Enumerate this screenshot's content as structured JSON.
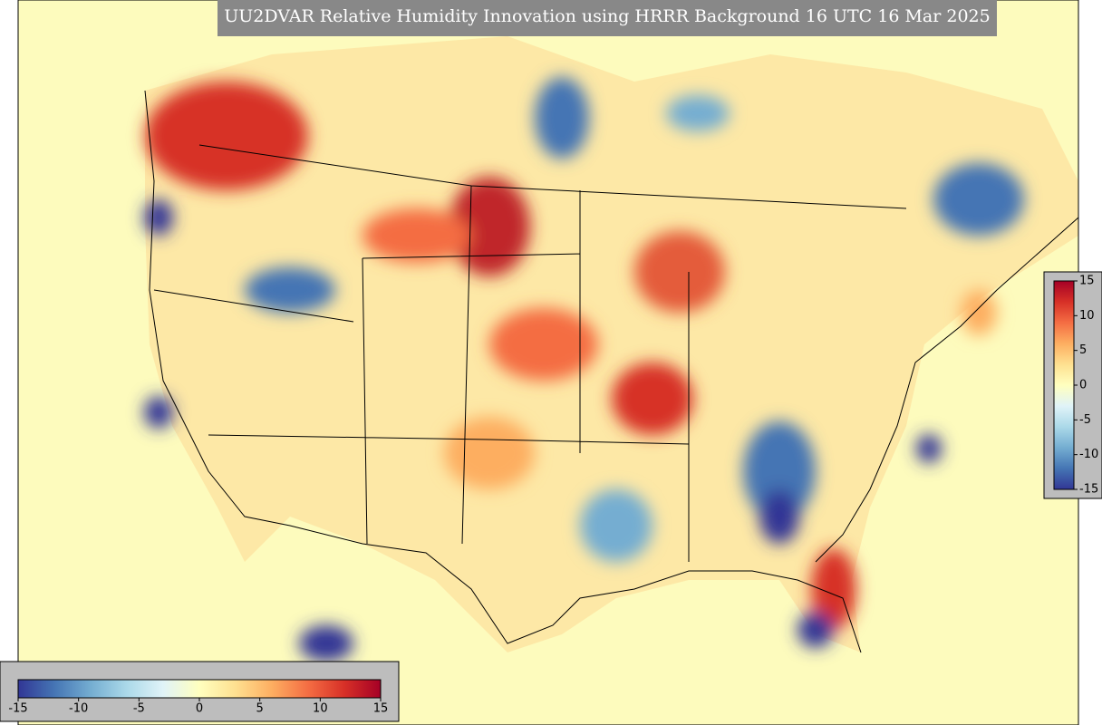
{
  "title": "UU2DVAR Relative Humidity Innovation using HRRR Background 16 UTC 16 Mar 2025",
  "colorbar": {
    "range": [
      -15,
      15
    ],
    "ticks": [
      -15,
      -10,
      -5,
      0,
      5,
      10,
      15
    ],
    "colormap": [
      "#313695",
      "#4575b4",
      "#74add1",
      "#abd9e9",
      "#e0f3f8",
      "#ffffbf",
      "#fee090",
      "#fdae61",
      "#f46d43",
      "#d73027",
      "#a50026"
    ]
  }
}
